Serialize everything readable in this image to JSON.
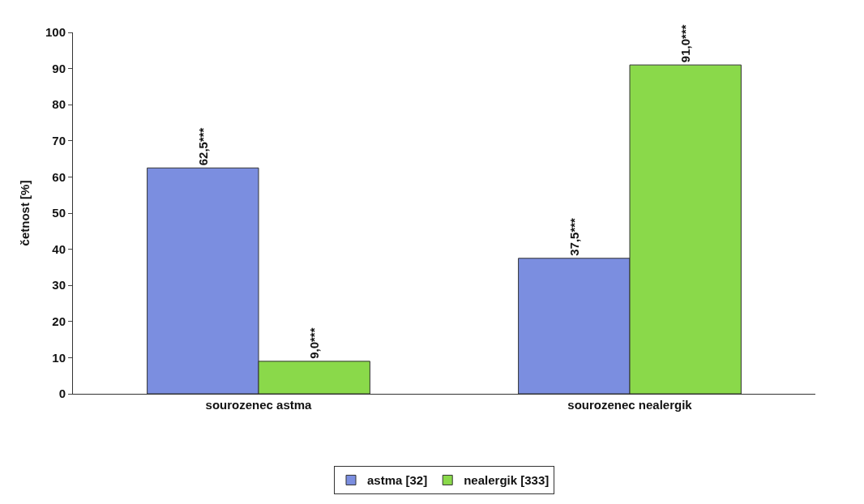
{
  "chart_data": {
    "type": "bar",
    "ylabel": "četnost [%]",
    "categories": [
      "sourozenec astma",
      "sourozenec nealergik"
    ],
    "series": [
      {
        "name": "astma [32]",
        "color": "#7b8ee0",
        "values": [
          62.5,
          37.5
        ],
        "value_labels": [
          "62,5***",
          "37,5***"
        ]
      },
      {
        "name": "nealergik [333]",
        "color": "#8ad94a",
        "values": [
          9.0,
          91.0
        ],
        "value_labels": [
          "9,0***",
          "91,0***"
        ]
      }
    ],
    "ylim": [
      0,
      100
    ],
    "yticks": [
      0,
      10,
      20,
      30,
      40,
      50,
      60,
      70,
      80,
      90,
      100
    ],
    "legend": "bottom"
  }
}
